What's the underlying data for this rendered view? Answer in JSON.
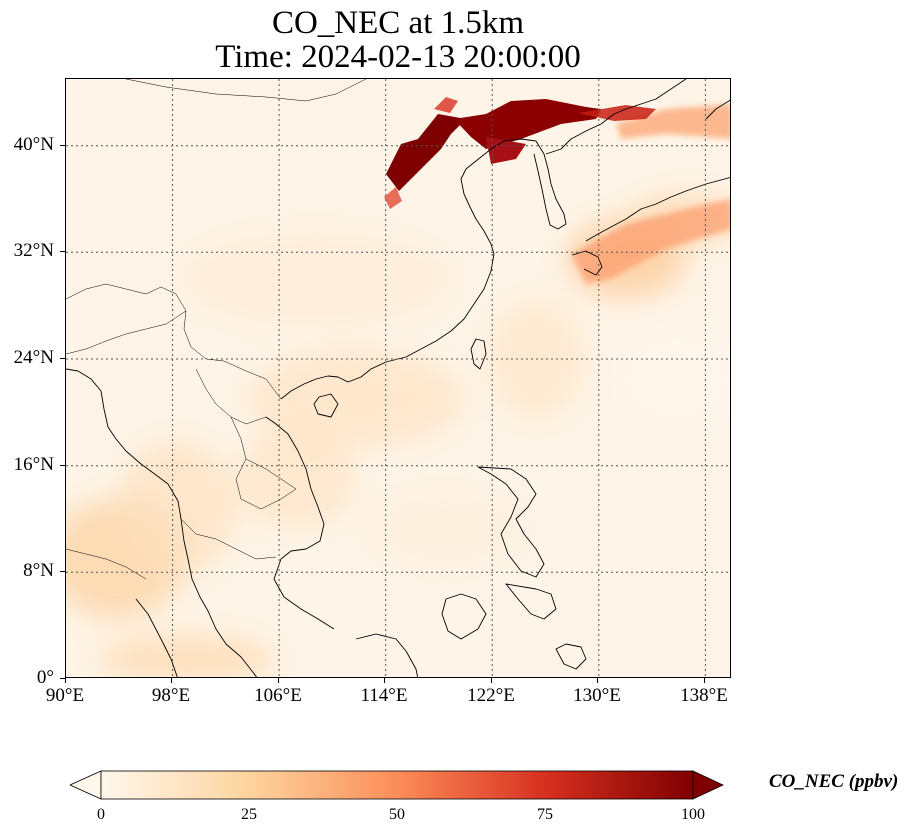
{
  "title": {
    "line1": "CO_NEC at 1.5km",
    "line2": "Time: 2024-02-13 20:00:00"
  },
  "map": {
    "variable": "CO_NEC",
    "level": "1.5km",
    "time": "2024-02-13 20:00:00",
    "extent": {
      "lon_min": 90,
      "lon_max": 140,
      "lat_min": 0,
      "lat_max": 45
    },
    "gridlines": true,
    "colormap": "OrRd",
    "colors": [
      "#fff7ec",
      "#fdd49e",
      "#fc8d59",
      "#d7301f",
      "#7f0000"
    ],
    "lat_ticks": [
      "0°",
      "8°N",
      "16°N",
      "24°N",
      "32°N",
      "40°N"
    ],
    "lon_ticks": [
      "90°E",
      "98°E",
      "106°E",
      "114°E",
      "122°E",
      "130°E",
      "138°E"
    ]
  },
  "colorbar": {
    "label": "CO_NEC (ppbv)",
    "ticks": [
      "0",
      "25",
      "50",
      "75",
      "100"
    ],
    "min": 0,
    "max": 100,
    "extend": "both"
  }
}
